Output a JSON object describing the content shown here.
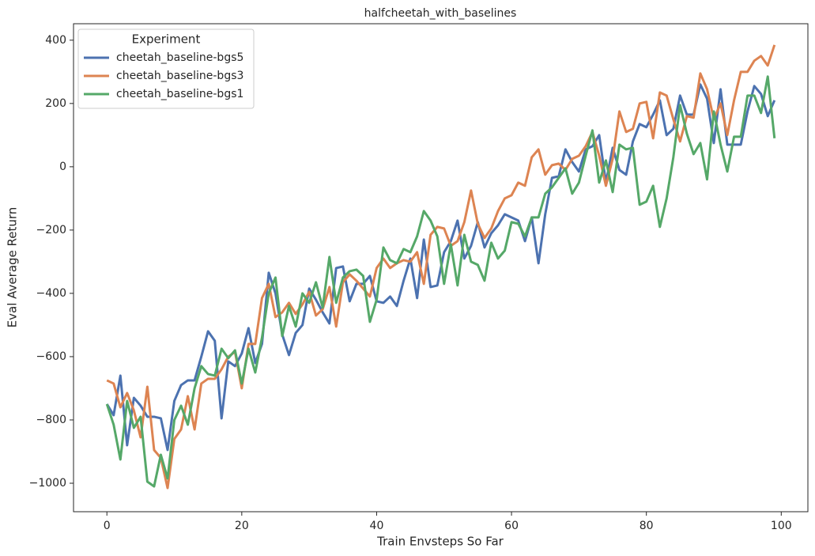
{
  "chart_data": {
    "type": "line",
    "title": "halfcheetah_with_baselines",
    "x_label": "Train Envsteps So Far",
    "y_label": "Eval Average Return",
    "legend_title": "Experiment",
    "legend_position": "upper left",
    "grid": false,
    "x": [
      0,
      1,
      2,
      3,
      4,
      5,
      6,
      7,
      8,
      9,
      10,
      11,
      12,
      13,
      14,
      15,
      16,
      17,
      18,
      19,
      20,
      21,
      22,
      23,
      24,
      25,
      26,
      27,
      28,
      29,
      30,
      31,
      32,
      33,
      34,
      35,
      36,
      37,
      38,
      39,
      40,
      41,
      42,
      43,
      44,
      45,
      46,
      47,
      48,
      49,
      50,
      51,
      52,
      53,
      54,
      55,
      56,
      57,
      58,
      59,
      60,
      61,
      62,
      63,
      64,
      65,
      66,
      67,
      68,
      69,
      70,
      71,
      72,
      73,
      74,
      75,
      76,
      77,
      78,
      79,
      80,
      81,
      82,
      83,
      84,
      85,
      86,
      87,
      88,
      89,
      90,
      91,
      92,
      93,
      94,
      95,
      96,
      97,
      98,
      99
    ],
    "xlim": [
      -4.95,
      103.95
    ],
    "xticks": [
      0,
      20,
      40,
      60,
      80,
      100
    ],
    "ylim": [
      -1090,
      452
    ],
    "yticks": [
      {
        "value": -1000,
        "label": "−1000"
      },
      {
        "value": -800,
        "label": "−800"
      },
      {
        "value": -600,
        "label": "−600"
      },
      {
        "value": -400,
        "label": "−400"
      },
      {
        "value": -200,
        "label": "−200"
      },
      0,
      200,
      400
    ],
    "series": [
      {
        "name": "cheetah_baseline-bgs5",
        "color": "#4c72b0",
        "values": [
          -750,
          -785,
          -660,
          -880,
          -730,
          -755,
          -790,
          -790,
          -795,
          -895,
          -740,
          -690,
          -675,
          -675,
          -600,
          -520,
          -550,
          -795,
          -615,
          -630,
          -590,
          -510,
          -620,
          -560,
          -335,
          -400,
          -530,
          -595,
          -525,
          -500,
          -385,
          -420,
          -460,
          -495,
          -320,
          -315,
          -425,
          -370,
          -370,
          -345,
          -425,
          -430,
          -410,
          -440,
          -360,
          -290,
          -415,
          -230,
          -380,
          -375,
          -270,
          -235,
          -170,
          -290,
          -250,
          -175,
          -255,
          -210,
          -185,
          -150,
          -160,
          -170,
          -235,
          -160,
          -305,
          -150,
          -35,
          -30,
          55,
          15,
          -15,
          55,
          65,
          100,
          -50,
          60,
          -10,
          -25,
          80,
          135,
          125,
          165,
          210,
          100,
          120,
          225,
          165,
          165,
          260,
          215,
          75,
          245,
          70,
          70,
          70,
          175,
          255,
          230,
          160,
          210
        ]
      },
      {
        "name": "cheetah_baseline-bgs3",
        "color": "#dd8452",
        "values": [
          -675,
          -685,
          -760,
          -715,
          -770,
          -855,
          -695,
          -895,
          -920,
          -1015,
          -860,
          -830,
          -725,
          -830,
          -685,
          -670,
          -670,
          -640,
          -600,
          -585,
          -700,
          -560,
          -560,
          -415,
          -370,
          -475,
          -460,
          -430,
          -465,
          -435,
          -395,
          -470,
          -450,
          -380,
          -505,
          -365,
          -340,
          -360,
          -385,
          -410,
          -320,
          -290,
          -320,
          -305,
          -295,
          -300,
          -270,
          -370,
          -215,
          -190,
          -195,
          -250,
          -235,
          -175,
          -75,
          -180,
          -225,
          -195,
          -140,
          -100,
          -90,
          -50,
          -60,
          30,
          55,
          -25,
          5,
          10,
          -10,
          25,
          35,
          65,
          110,
          35,
          -60,
          25,
          175,
          110,
          120,
          200,
          205,
          90,
          235,
          225,
          150,
          80,
          160,
          155,
          295,
          245,
          150,
          200,
          100,
          210,
          300,
          300,
          335,
          350,
          320,
          385
        ]
      },
      {
        "name": "cheetah_baseline-bgs1",
        "color": "#55a868",
        "values": [
          -750,
          -815,
          -925,
          -740,
          -825,
          -790,
          -995,
          -1010,
          -910,
          -985,
          -800,
          -755,
          -815,
          -700,
          -630,
          -655,
          -660,
          -575,
          -605,
          -580,
          -685,
          -575,
          -650,
          -540,
          -400,
          -350,
          -535,
          -440,
          -505,
          -400,
          -430,
          -365,
          -445,
          -285,
          -430,
          -350,
          -330,
          -325,
          -345,
          -490,
          -420,
          -255,
          -295,
          -305,
          -260,
          -270,
          -220,
          -140,
          -170,
          -220,
          -370,
          -245,
          -375,
          -215,
          -300,
          -310,
          -360,
          -240,
          -290,
          -265,
          -175,
          -180,
          -220,
          -160,
          -160,
          -85,
          -65,
          -35,
          -5,
          -85,
          -50,
          35,
          115,
          -50,
          20,
          -80,
          70,
          55,
          60,
          -120,
          -110,
          -60,
          -190,
          -100,
          30,
          195,
          105,
          40,
          75,
          -40,
          175,
          70,
          -15,
          95,
          95,
          225,
          225,
          170,
          285,
          90
        ]
      }
    ]
  }
}
